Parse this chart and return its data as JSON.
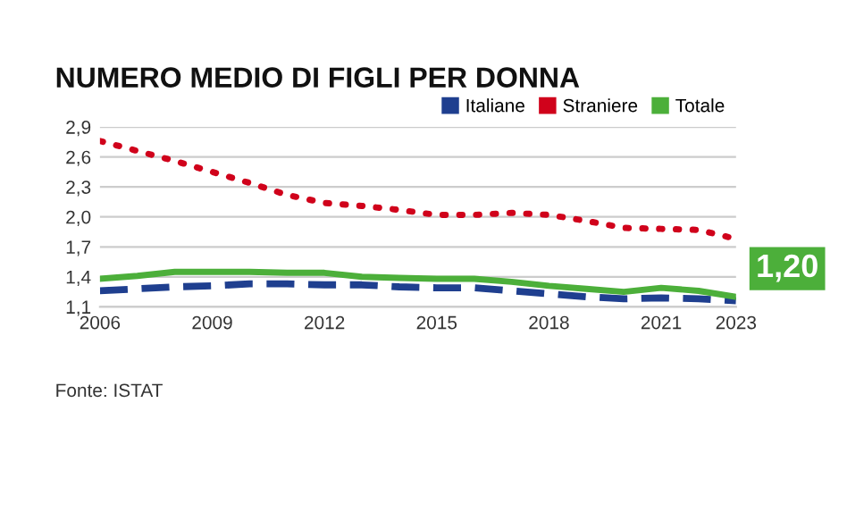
{
  "chart_data": {
    "type": "line",
    "title": "NUMERO MEDIO DI FIGLI PER DONNA",
    "x": [
      2006,
      2007,
      2008,
      2009,
      2010,
      2011,
      2012,
      2013,
      2014,
      2015,
      2016,
      2017,
      2018,
      2019,
      2020,
      2021,
      2022,
      2023
    ],
    "series": [
      {
        "name": "Italiane",
        "color": "#1f3f8f",
        "line_style": "dashed",
        "values": [
          1.26,
          1.28,
          1.3,
          1.31,
          1.33,
          1.33,
          1.32,
          1.32,
          1.3,
          1.29,
          1.29,
          1.26,
          1.23,
          1.2,
          1.18,
          1.19,
          1.18,
          1.16
        ]
      },
      {
        "name": "Straniere",
        "color": "#d0021b",
        "line_style": "dotted",
        "values": [
          2.76,
          2.66,
          2.56,
          2.45,
          2.34,
          2.22,
          2.14,
          2.11,
          2.07,
          2.02,
          2.02,
          2.04,
          2.02,
          1.96,
          1.89,
          1.88,
          1.87,
          1.78
        ]
      },
      {
        "name": "Totale",
        "color": "#4caf3a",
        "line_style": "solid",
        "values": [
          1.38,
          1.41,
          1.45,
          1.45,
          1.45,
          1.44,
          1.44,
          1.4,
          1.39,
          1.38,
          1.38,
          1.35,
          1.31,
          1.28,
          1.25,
          1.29,
          1.26,
          1.2
        ]
      }
    ],
    "xlim": [
      2006,
      2023
    ],
    "xticks": [
      2006,
      2009,
      2012,
      2015,
      2018,
      2021,
      2023
    ],
    "ylim": [
      1.1,
      2.9
    ],
    "yticks": [
      {
        "value": 1.1,
        "label": "1,1"
      },
      {
        "value": 1.4,
        "label": "1,4"
      },
      {
        "value": 1.7,
        "label": "1,7"
      },
      {
        "value": 2.0,
        "label": "2,0"
      },
      {
        "value": 2.3,
        "label": "2,3"
      },
      {
        "value": 2.6,
        "label": "2,6"
      },
      {
        "value": 2.9,
        "label": "2,9"
      }
    ],
    "grid": "y",
    "legend": "top right",
    "marker": "none",
    "annotations": [
      {
        "text": "1,20",
        "x": 2023,
        "y": 1.2
      },
      "Fonte: ISTAT"
    ]
  }
}
